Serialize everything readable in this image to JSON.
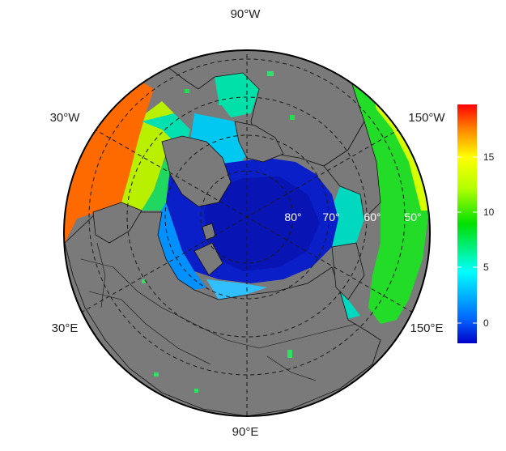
{
  "map": {
    "longitude_labels": {
      "top": "90°W",
      "bottom": "90°E",
      "upper_left": "30°W",
      "upper_right": "150°W",
      "lower_left": "30°E",
      "lower_right": "150°E"
    },
    "latitude_labels": [
      "80°",
      "70°",
      "60°",
      "50°"
    ],
    "colors": {
      "land": "#7a7a7a",
      "background": "#ffffff",
      "graticule": "#1a1a1a"
    }
  },
  "colorbar": {
    "tick_labels": [
      "15",
      "10",
      "5",
      "0"
    ],
    "ticks": [
      15,
      10,
      5,
      0
    ],
    "range": [
      -2,
      19
    ],
    "stops": [
      "#0000c8",
      "#0064ff",
      "#00ffff",
      "#00e000",
      "#b4ff00",
      "#ffff00",
      "#ff8000",
      "#ff0000"
    ]
  }
}
